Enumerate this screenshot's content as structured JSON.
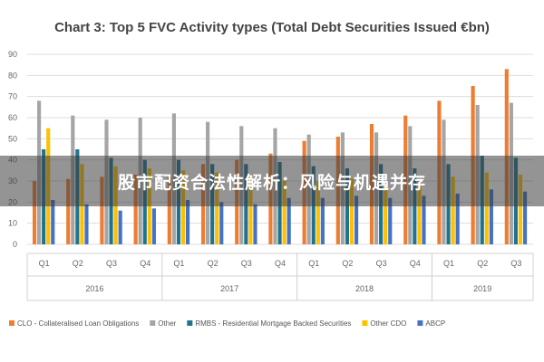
{
  "banner_text": "股市配资合法性解析：风险与机遇并存",
  "chart_data": {
    "type": "bar",
    "title": "Chart 3: Top 5 FVC Activity types (Total Debt Securities Issued €bn)",
    "categories": [
      "Q1",
      "Q2",
      "Q3",
      "Q4",
      "Q1",
      "Q2",
      "Q3",
      "Q4",
      "Q1",
      "Q2",
      "Q3",
      "Q4",
      "Q1",
      "Q2",
      "Q3"
    ],
    "groups": [
      {
        "label": "2016",
        "count": 4
      },
      {
        "label": "2017",
        "count": 4
      },
      {
        "label": "2018",
        "count": 4
      },
      {
        "label": "2019",
        "count": 3
      }
    ],
    "ylim": [
      0,
      90
    ],
    "yticks": [
      0,
      10,
      20,
      30,
      40,
      50,
      60,
      70,
      80,
      90
    ],
    "grid": true,
    "legend_position": "bottom",
    "series": [
      {
        "name": "CLO - Collateralised Loan Obligations",
        "color": "#ED7D31",
        "values": [
          30,
          31,
          32,
          33,
          32,
          38,
          40,
          43,
          49,
          51,
          57,
          61,
          68,
          75,
          83
        ]
      },
      {
        "name": "Other",
        "color": "#A5A5A5",
        "values": [
          68,
          61,
          59,
          60,
          62,
          58,
          56,
          55,
          52,
          53,
          53,
          56,
          59,
          66,
          67
        ]
      },
      {
        "name": "RMBS - Residential Mortgage Backed Securities",
        "color": "#1F7391",
        "values": [
          45,
          45,
          41,
          40,
          40,
          38,
          38,
          39,
          37,
          36,
          38,
          36,
          38,
          42,
          41
        ]
      },
      {
        "name": "Other CDO",
        "color": "#FFC000",
        "values": [
          55,
          38,
          37,
          36,
          35,
          34,
          33,
          30,
          30,
          31,
          30,
          30,
          32,
          34,
          33
        ]
      },
      {
        "name": "ABCP",
        "color": "#4472C4",
        "values": [
          21,
          19,
          16,
          17,
          21,
          20,
          19,
          22,
          22,
          23,
          22,
          23,
          24,
          26,
          25
        ]
      }
    ]
  }
}
